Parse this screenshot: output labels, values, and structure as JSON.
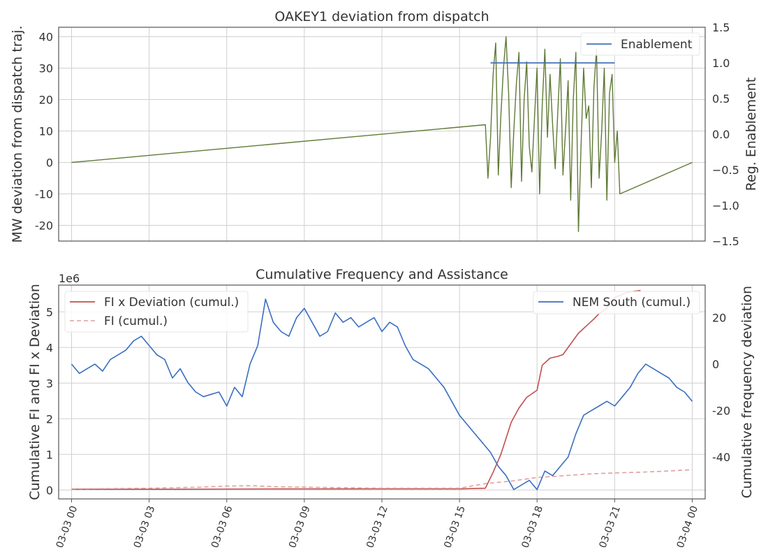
{
  "figure": {
    "background": "#ffffff",
    "grid_color": "#d0d0d0",
    "frame_color": "#555555",
    "text_color": "#333333"
  },
  "chart_data": [
    {
      "type": "line",
      "title": "OAKEY1 deviation from dispatch",
      "ylabel": "MW deviation from dispatch traj.",
      "y2label": "Reg. Enablement",
      "x_unit": "hour from 03-03 00:00",
      "xlim": [
        -0.5,
        24.5
      ],
      "ylim": [
        -25,
        43
      ],
      "yticks": [
        -20,
        -10,
        0,
        10,
        20,
        30,
        40
      ],
      "y2lim": [
        -1.5,
        1.5
      ],
      "y2ticks": [
        "−1.5",
        "−1.0",
        "−0.5",
        "0.0",
        "0.5",
        "1.0",
        "1.5"
      ],
      "y2tick_values": [
        -1.5,
        -1.0,
        -0.5,
        0.0,
        0.5,
        1.0,
        1.5
      ],
      "grid": true,
      "legend": {
        "placement": "top-right",
        "entries": [
          {
            "label": "Enablement",
            "color": "#4472b8",
            "style": "solid"
          }
        ]
      },
      "series": [
        {
          "name": "",
          "axis": "left",
          "color": "#5f7a36",
          "x": [
            0,
            16.0,
            16.1,
            16.2,
            16.3,
            16.4,
            16.5,
            16.6,
            16.7,
            16.8,
            16.9,
            17.0,
            17.1,
            17.2,
            17.3,
            17.4,
            17.5,
            17.6,
            17.7,
            17.8,
            17.9,
            18.0,
            18.1,
            18.2,
            18.3,
            18.4,
            18.5,
            18.6,
            18.7,
            18.8,
            18.9,
            19.0,
            19.1,
            19.2,
            19.3,
            19.4,
            19.5,
            19.6,
            19.7,
            19.8,
            19.9,
            20.0,
            20.1,
            20.2,
            20.3,
            20.4,
            20.5,
            20.6,
            20.7,
            20.8,
            20.9,
            21.0,
            21.1,
            21.2,
            24
          ],
          "y": [
            0,
            12,
            -5,
            8,
            28,
            38,
            -4,
            15,
            30,
            40,
            22,
            -8,
            10,
            25,
            35,
            -6,
            20,
            32,
            5,
            -3,
            14,
            30,
            -10,
            18,
            36,
            8,
            28,
            12,
            -2,
            16,
            33,
            -4,
            10,
            26,
            -12,
            20,
            35,
            -22,
            5,
            30,
            14,
            18,
            -8,
            24,
            36,
            -5,
            10,
            30,
            -12,
            22,
            28,
            0,
            10,
            -10,
            0
          ]
        },
        {
          "name": "Enablement",
          "axis": "right",
          "color": "#4472b8",
          "x": [
            16.2,
            21.0
          ],
          "y": [
            1.0,
            1.0
          ]
        }
      ]
    },
    {
      "type": "line",
      "title": "Cumulative Frequency and Assistance",
      "ylabel": "Cumulative FI and FI x Deviation",
      "y2label": "Cumulative frequency deviation",
      "y_multiplier": "1e6",
      "x_unit": "hour from 03-03 00:00",
      "xlim": [
        -0.5,
        24.5
      ],
      "ylim": [
        -0.25,
        5.75
      ],
      "yticks": [
        0,
        1,
        2,
        3,
        4,
        5
      ],
      "y2lim": [
        -58,
        34
      ],
      "y2ticks": [
        -40,
        -20,
        0,
        20
      ],
      "xtick_labels": [
        "03-03 00",
        "03-03 03",
        "03-03 06",
        "03-03 09",
        "03-03 12",
        "03-03 15",
        "03-03 18",
        "03-03 21",
        "03-04 00"
      ],
      "xtick_values": [
        0,
        3,
        6,
        9,
        12,
        15,
        18,
        21,
        24
      ],
      "grid": true,
      "legends": [
        {
          "placement": "top-left",
          "entries": [
            {
              "label": "FI x Deviation (cumul.)",
              "color": "#c0504d",
              "style": "solid"
            },
            {
              "label": "FI (cumul.)",
              "color": "#e0a0a0",
              "style": "dashed"
            }
          ]
        },
        {
          "placement": "top-right",
          "entries": [
            {
              "label": "NEM South (cumul.)",
              "color": "#3a6fc0",
              "style": "solid"
            }
          ]
        }
      ],
      "series": [
        {
          "name": "FI x Deviation (cumul.)",
          "axis": "left",
          "color": "#c0504d",
          "style": "solid",
          "x": [
            0,
            4,
            8,
            12,
            15,
            16.0,
            16.3,
            16.6,
            17.0,
            17.3,
            17.6,
            17.9,
            18.0,
            18.2,
            18.5,
            18.8,
            19.0,
            19.3,
            19.6,
            19.9,
            20.2,
            20.4,
            20.7,
            21.0,
            21.5,
            22
          ],
          "y": [
            0.02,
            0.02,
            0.03,
            0.03,
            0.03,
            0.05,
            0.5,
            1.0,
            1.9,
            2.3,
            2.6,
            2.75,
            2.8,
            3.5,
            3.7,
            3.75,
            3.8,
            4.1,
            4.4,
            4.6,
            4.8,
            4.95,
            5.1,
            5.4,
            5.55,
            5.6
          ]
        },
        {
          "name": "FI (cumul.)",
          "axis": "left",
          "color": "#e0a0a0",
          "style": "dashed",
          "x": [
            0,
            3,
            5,
            6,
            7,
            8,
            9,
            10,
            12,
            15,
            16,
            17,
            18,
            19,
            20,
            21,
            22,
            23,
            24
          ],
          "y": [
            0.03,
            0.05,
            0.08,
            0.11,
            0.12,
            0.09,
            0.08,
            0.07,
            0.05,
            0.05,
            0.18,
            0.25,
            0.35,
            0.4,
            0.45,
            0.48,
            0.5,
            0.53,
            0.57
          ]
        },
        {
          "name": "NEM South (cumul.)",
          "axis": "right",
          "color": "#3a6fc0",
          "style": "solid",
          "x": [
            0,
            0.3,
            0.6,
            0.9,
            1.2,
            1.5,
            1.8,
            2.1,
            2.4,
            2.7,
            3.0,
            3.3,
            3.6,
            3.9,
            4.2,
            4.5,
            4.8,
            5.1,
            5.4,
            5.7,
            6.0,
            6.3,
            6.6,
            6.9,
            7.2,
            7.5,
            7.8,
            8.1,
            8.4,
            8.7,
            9.0,
            9.3,
            9.6,
            9.9,
            10.2,
            10.5,
            10.8,
            11.1,
            11.4,
            11.7,
            12.0,
            12.3,
            12.6,
            12.9,
            13.2,
            13.5,
            13.8,
            14.1,
            14.4,
            14.7,
            15.0,
            15.3,
            15.6,
            15.9,
            16.2,
            16.5,
            16.8,
            17.1,
            17.4,
            17.7,
            18.0,
            18.3,
            18.6,
            18.9,
            19.2,
            19.5,
            19.8,
            20.1,
            20.4,
            20.7,
            21.0,
            21.3,
            21.6,
            21.9,
            22.2,
            22.5,
            22.8,
            23.1,
            23.4,
            23.7,
            24.0
          ],
          "y": [
            0,
            -4,
            -2,
            0,
            -3,
            2,
            4,
            6,
            10,
            12,
            8,
            4,
            2,
            -6,
            -2,
            -8,
            -12,
            -14,
            -13,
            -12,
            -18,
            -10,
            -14,
            0,
            8,
            28,
            18,
            14,
            12,
            20,
            24,
            18,
            12,
            14,
            22,
            18,
            20,
            16,
            18,
            20,
            14,
            18,
            16,
            8,
            2,
            0,
            -2,
            -6,
            -10,
            -16,
            -22,
            -26,
            -30,
            -34,
            -38,
            -44,
            -48,
            -54,
            -52,
            -50,
            -54,
            -46,
            -48,
            -44,
            -40,
            -30,
            -22,
            -20,
            -18,
            -16,
            -18,
            -14,
            -10,
            -4,
            0,
            -2,
            -4,
            -6,
            -10,
            -12,
            -16
          ]
        }
      ]
    }
  ]
}
